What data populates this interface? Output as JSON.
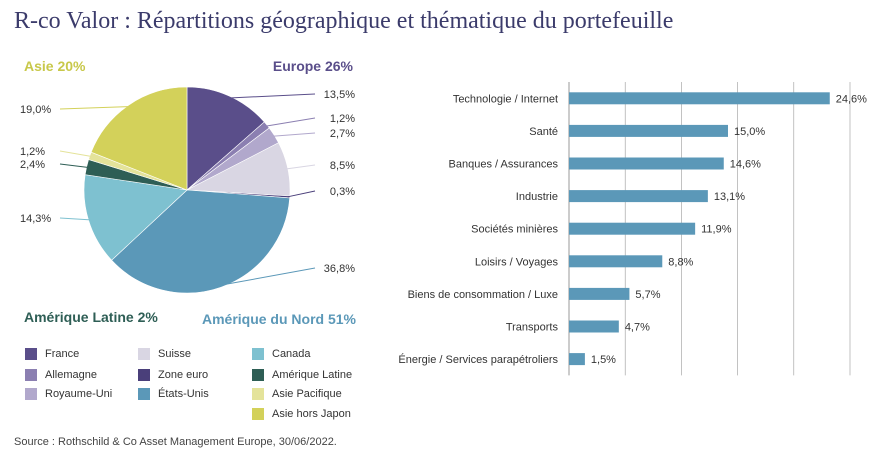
{
  "title": "R-co Valor : Répartitions géographique et thématique du portefeuille",
  "source": "Source : Rothschild & Co Asset Management Europe, 30/06/2022.",
  "chart_data": [
    {
      "type": "pie",
      "region_labels": [
        {
          "text": "Asie 20%",
          "color": "#c8c84a"
        },
        {
          "text": "Europe 26%",
          "color": "#5a4e8a"
        },
        {
          "text": "Amérique Latine 2%",
          "color": "#2e5e55"
        },
        {
          "text": "Amérique du Nord 51%",
          "color": "#5b98b8"
        }
      ],
      "slices": [
        {
          "name": "France",
          "value": 13.5,
          "label": "13,5%",
          "color": "#5a4e8a"
        },
        {
          "name": "Allemagne",
          "value": 1.2,
          "label": "1,2%",
          "color": "#8b7fb1"
        },
        {
          "name": "Royaume-Uni",
          "value": 2.7,
          "label": "2,7%",
          "color": "#b1a8cc"
        },
        {
          "name": "Suisse",
          "value": 8.5,
          "label": "8,5%",
          "color": "#d9d6e3"
        },
        {
          "name": "Zone euro",
          "value": 0.3,
          "label": "0,3%",
          "color": "#4a3f7a"
        },
        {
          "name": "États-Unis",
          "value": 36.8,
          "label": "36,8%",
          "color": "#5b98b8"
        },
        {
          "name": "Canada",
          "value": 14.3,
          "label": "14,3%",
          "color": "#7ec1d0"
        },
        {
          "name": "Amérique Latine",
          "value": 2.4,
          "label": "2,4%",
          "color": "#2e5e55"
        },
        {
          "name": "Asie Pacifique",
          "value": 1.2,
          "label": "1,2%",
          "color": "#e4e39a"
        },
        {
          "name": "Asie hors Japon",
          "value": 19.0,
          "label": "19,0%",
          "color": "#d3d15a"
        }
      ],
      "legend": [
        [
          "France",
          "Suisse",
          "Canada"
        ],
        [
          "Allemagne",
          "Zone euro",
          "Amérique Latine"
        ],
        [
          "Royaume-Uni",
          "États-Unis",
          "Asie Pacifique"
        ],
        [
          "",
          "",
          "Asie hors Japon"
        ]
      ]
    },
    {
      "type": "bar",
      "orientation": "horizontal",
      "categories": [
        "Technologie / Internet",
        "Santé",
        "Banques / Assurances",
        "Industrie",
        "Sociétés minières",
        "Loisirs / Voyages",
        "Biens de consommation / Luxe",
        "Transports",
        "Énergie / Services parapétroliers"
      ],
      "values": [
        24.6,
        15.0,
        14.6,
        13.1,
        11.9,
        8.8,
        5.7,
        4.7,
        1.5
      ],
      "value_labels": [
        "24,6%",
        "15,0%",
        "14,6%",
        "13,1%",
        "11,9%",
        "8,8%",
        "5,7%",
        "4,7%",
        "1,5%"
      ],
      "xlim": [
        0,
        25
      ],
      "grid": true,
      "color": "#5b98b8"
    }
  ]
}
